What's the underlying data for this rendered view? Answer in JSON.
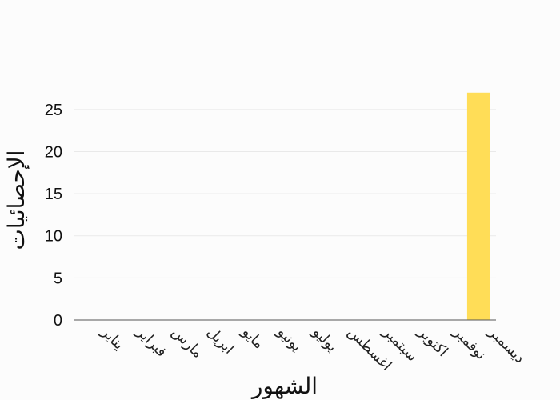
{
  "chart_data": {
    "type": "bar",
    "title": "",
    "xlabel": "الشهور",
    "ylabel": "الإحصائيات",
    "categories": [
      "يناير",
      "فبراير",
      "مارس",
      "ابريل",
      "مايو",
      "يونيو",
      "يوليو",
      "اغسطس",
      "سبتمبر",
      "اكتوبر",
      "نوفمبر",
      "ديسمبر"
    ],
    "values": [
      0,
      0,
      0,
      0,
      0,
      0,
      0,
      0,
      0,
      0,
      0,
      27
    ],
    "yticks": [
      0,
      5,
      10,
      15,
      20,
      25
    ],
    "ylim": [
      0,
      28.5
    ],
    "grid": true,
    "legend": "none",
    "bar_color": "#ffdd57"
  }
}
